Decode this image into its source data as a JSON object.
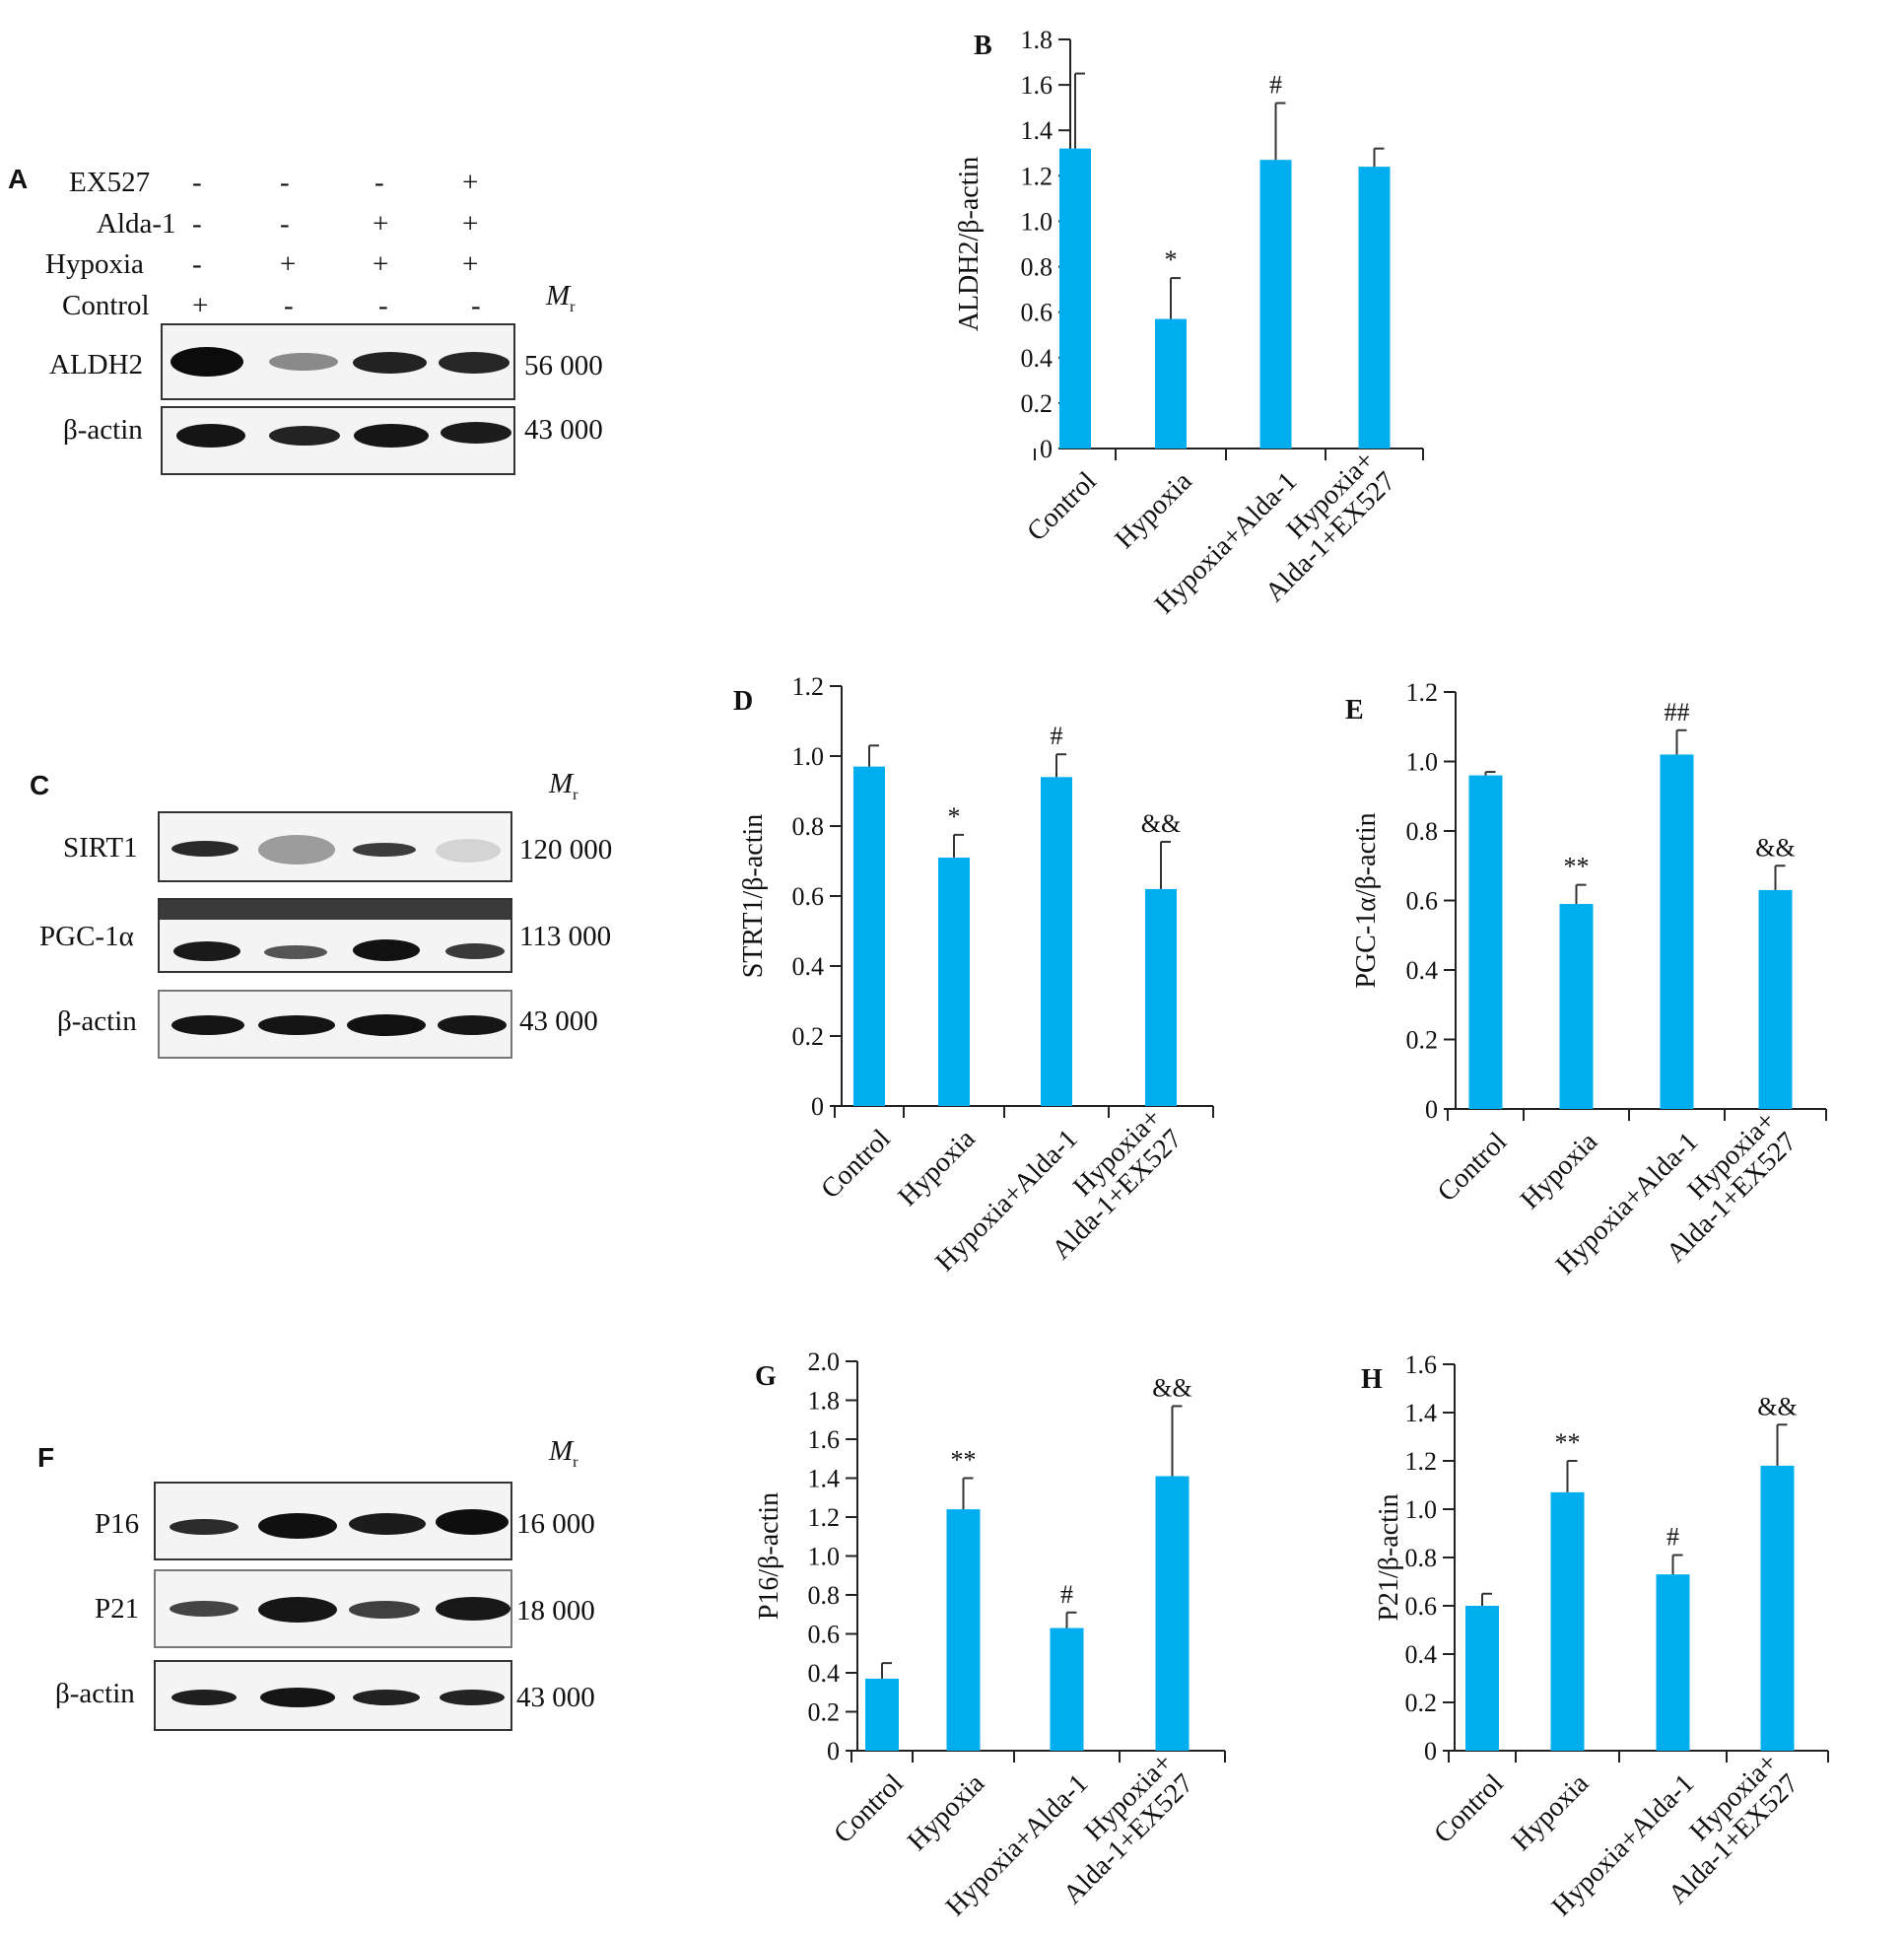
{
  "blots": {
    "A": {
      "letter": "A",
      "mr_label": "M",
      "mr_sub": "r",
      "rows": [
        {
          "name": "EX527",
          "signs": [
            "-",
            "-",
            "-",
            "+"
          ]
        },
        {
          "name": "Alda-1",
          "signs": [
            "-",
            "-",
            "+",
            "+"
          ]
        },
        {
          "name": "Hypoxia",
          "signs": [
            "-",
            "+",
            "+",
            "+"
          ]
        },
        {
          "name": "Control",
          "signs": [
            "+",
            "-",
            "-",
            "-"
          ]
        }
      ],
      "bands": [
        {
          "protein": "ALDH2",
          "mr": "56 000"
        },
        {
          "protein": "β-actin",
          "mr": "43 000"
        }
      ]
    },
    "C": {
      "letter": "C",
      "mr_label": "M",
      "mr_sub": "r",
      "bands": [
        {
          "protein": "SIRT1",
          "mr": "120 000"
        },
        {
          "protein": "PGC-1α",
          "mr": "113 000"
        },
        {
          "protein": "β-actin",
          "mr": "43 000"
        }
      ]
    },
    "F": {
      "letter": "F",
      "mr_label": "M",
      "mr_sub": "r",
      "bands": [
        {
          "protein": "P16",
          "mr": "16 000"
        },
        {
          "protein": "P21",
          "mr": "18 000"
        },
        {
          "protein": "β-actin",
          "mr": "43 000"
        }
      ]
    }
  },
  "chart_data": [
    {
      "panel": "B",
      "type": "bar",
      "categories": [
        "Control",
        "Hypoxia",
        "Hypoxia+Alda-1",
        "Hypoxia+\nAlda-1+EX527"
      ],
      "values": [
        1.32,
        0.57,
        1.27,
        1.24
      ],
      "errors": [
        0.33,
        0.18,
        0.25,
        0.08
      ],
      "annotations": [
        "",
        "*",
        "#",
        ""
      ],
      "ylabel": "ALDH2/β-actin",
      "ylim": [
        0,
        1.8
      ],
      "yticks": [
        "0",
        "0.2",
        "0.4",
        "0.6",
        "0.8",
        "1.0",
        "1.2",
        "1.4",
        "1.6",
        "1.8"
      ],
      "color": "#00aeef"
    },
    {
      "panel": "D",
      "type": "bar",
      "categories": [
        "Control",
        "Hypoxia",
        "Hypoxia+Alda-1",
        "Hypoxia+\nAlda-1+EX527"
      ],
      "values": [
        0.97,
        0.71,
        0.94,
        0.62
      ],
      "errors": [
        0.06,
        0.065,
        0.065,
        0.135
      ],
      "annotations": [
        "",
        "*",
        "#",
        "&&"
      ],
      "ylabel": "STRT1/β-actin",
      "ylim": [
        0,
        1.2
      ],
      "yticks": [
        "0",
        "0.2",
        "0.4",
        "0.6",
        "0.8",
        "1.0",
        "1.2"
      ],
      "color": "#00aeef"
    },
    {
      "panel": "E",
      "type": "bar",
      "categories": [
        "Control",
        "Hypoxia",
        "Hypoxia+Alda-1",
        "Hypoxia+\nAlda-1+EX527"
      ],
      "values": [
        0.96,
        0.59,
        1.02,
        0.63
      ],
      "errors": [
        0.01,
        0.055,
        0.07,
        0.07
      ],
      "annotations": [
        "",
        "**",
        "##",
        "&&"
      ],
      "ylabel": "PGC-1α/β-actin",
      "ylim": [
        0,
        1.2
      ],
      "yticks": [
        "0",
        "0.2",
        "0.4",
        "0.6",
        "0.8",
        "1.0",
        "1.2"
      ],
      "color": "#00aeef"
    },
    {
      "panel": "G",
      "type": "bar",
      "categories": [
        "Control",
        "Hypoxia",
        "Hypoxia+Alda-1",
        "Hypoxia+\nAlda-1+EX527"
      ],
      "values": [
        0.37,
        1.24,
        0.63,
        1.41
      ],
      "errors": [
        0.08,
        0.16,
        0.08,
        0.36
      ],
      "annotations": [
        "",
        "**",
        "#",
        "&&"
      ],
      "ylabel": "P16/β-actin",
      "ylim": [
        0,
        2.0
      ],
      "yticks": [
        "0",
        "0.2",
        "0.4",
        "0.6",
        "0.8",
        "1.0",
        "1.2",
        "1.4",
        "1.6",
        "1.8",
        "2.0"
      ],
      "color": "#00aeef"
    },
    {
      "panel": "H",
      "type": "bar",
      "categories": [
        "Control",
        "Hypoxia",
        "Hypoxia+Alda-1",
        "Hypoxia+\nAlda-1+EX527"
      ],
      "values": [
        0.6,
        1.07,
        0.73,
        1.18
      ],
      "errors": [
        0.05,
        0.13,
        0.08,
        0.17
      ],
      "annotations": [
        "",
        "**",
        "#",
        "&&"
      ],
      "ylabel": "P21/β-actin",
      "ylim": [
        0,
        1.6
      ],
      "yticks": [
        "0",
        "0.2",
        "0.4",
        "0.6",
        "0.8",
        "1.0",
        "1.2",
        "1.4",
        "1.6"
      ],
      "color": "#00aeef"
    }
  ]
}
